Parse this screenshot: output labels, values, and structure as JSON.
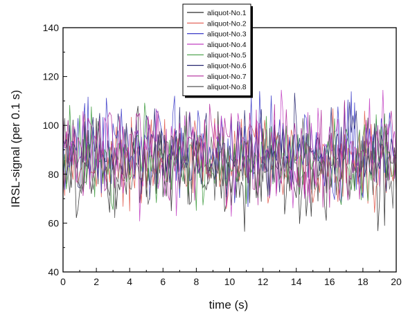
{
  "chart_data": {
    "type": "line",
    "xlabel": "time (s)",
    "ylabel": "IRSL-signal (per 0.1 s)",
    "xlim": [
      0,
      20
    ],
    "ylim": [
      40,
      140
    ],
    "xticks": [
      0,
      2,
      4,
      6,
      8,
      10,
      12,
      14,
      16,
      18,
      20
    ],
    "yticks": [
      40,
      60,
      80,
      100,
      120,
      140
    ],
    "legend_position": "top-center",
    "sample_interval_s": 0.1,
    "series": [
      {
        "name": "aliquot-No.1",
        "color": "#2b2b2b"
      },
      {
        "name": "aliquot-No.2",
        "color": "#e0564a"
      },
      {
        "name": "aliquot-No.3",
        "color": "#3a3ac8"
      },
      {
        "name": "aliquot-No.4",
        "color": "#c23fc2"
      },
      {
        "name": "aliquot-No.5",
        "color": "#3c9a3c"
      },
      {
        "name": "aliquot-No.6",
        "color": "#23236e"
      },
      {
        "name": "aliquot-No.7",
        "color": "#b0289a"
      },
      {
        "name": "aliquot-No.8",
        "color": "#555555"
      }
    ]
  }
}
